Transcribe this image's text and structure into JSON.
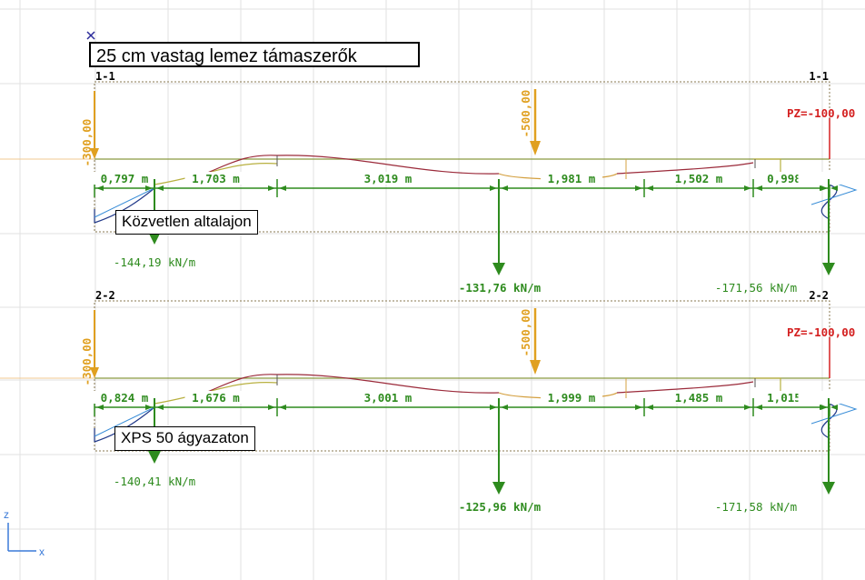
{
  "title": "25 cm vastag lemez támaszerők",
  "axes": {
    "z": "z",
    "x": "x"
  },
  "sections": [
    {
      "id": "1-1",
      "left_label": "1-1",
      "right_label": "1-1",
      "support_label": "Közvetlen altalajon",
      "left_load": "-300,00",
      "mid_load": "-500,00",
      "right_load": "PZ=-100,00",
      "spans": [
        "0,797 m",
        "1,703 m",
        "3,019 m",
        "1,981 m",
        "1,502 m",
        "0,998 m"
      ],
      "reactions": [
        "-144,19 kN/m",
        "-131,76 kN/m",
        "-171,56 kN/m"
      ]
    },
    {
      "id": "2-2",
      "left_label": "2-2",
      "right_label": "2-2",
      "support_label": "XPS 50 ágyazaton",
      "left_load": "-300,00",
      "mid_load": "-500,00",
      "right_load": "PZ=-100,00",
      "spans": [
        "0,824 m",
        "1,676 m",
        "3,001 m",
        "1,999 m",
        "1,485 m",
        "1,015 m"
      ],
      "reactions": [
        "-140,41 kN/m",
        "-125,96 kN/m",
        "-171,58 kN/m"
      ]
    }
  ],
  "colors": {
    "green": "#2e8b1e",
    "load": "#e0a020",
    "red": "#d42020",
    "grid": "#e2e2e2",
    "moment": "#9b2a3a",
    "shear": "#3a8ed8",
    "dashed": "#8a7a50"
  }
}
